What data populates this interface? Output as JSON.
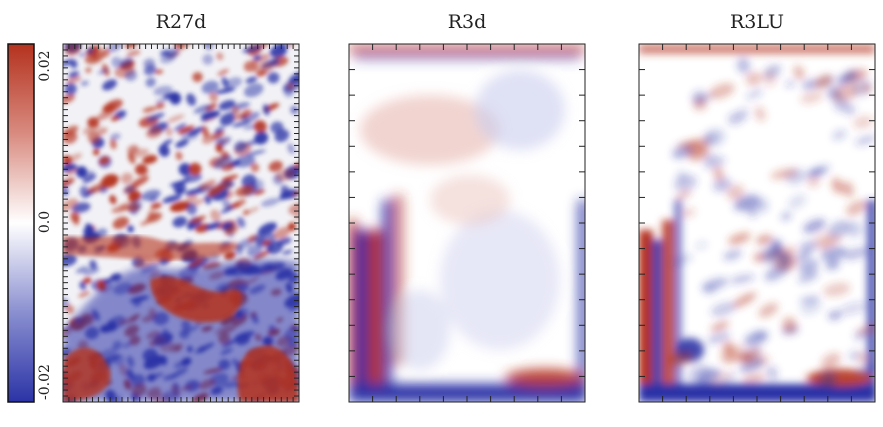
{
  "chart_data": {
    "type": "heatmap",
    "colormap": "diverging blue-white-red",
    "colors": {
      "low": "#2b33a6",
      "mid": "#ffffff",
      "high": "#b4321e"
    },
    "colorbar": {
      "vmin": -0.02,
      "vmax": 0.02,
      "tick_labels": [
        "0.02",
        "0.0",
        "-0.02"
      ],
      "orientation": "vertical",
      "placement": "left"
    },
    "panels": [
      {
        "title": "R27d",
        "style": "fine-scale turbulent"
      },
      {
        "title": "R3d",
        "style": "smooth large-scale"
      },
      {
        "title": "R3LU",
        "style": "smooth, moderate small-scale"
      }
    ]
  }
}
